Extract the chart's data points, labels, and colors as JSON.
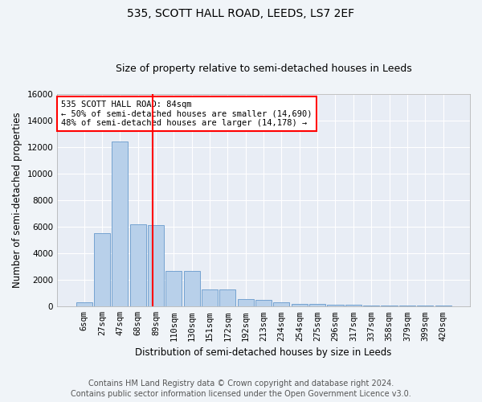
{
  "title1": "535, SCOTT HALL ROAD, LEEDS, LS7 2EF",
  "title2": "Size of property relative to semi-detached houses in Leeds",
  "xlabel": "Distribution of semi-detached houses by size in Leeds",
  "ylabel": "Number of semi-detached properties",
  "bar_labels": [
    "6sqm",
    "27sqm",
    "47sqm",
    "68sqm",
    "89sqm",
    "110sqm",
    "130sqm",
    "151sqm",
    "172sqm",
    "192sqm",
    "213sqm",
    "234sqm",
    "254sqm",
    "275sqm",
    "296sqm",
    "317sqm",
    "337sqm",
    "358sqm",
    "379sqm",
    "399sqm",
    "420sqm"
  ],
  "bar_values": [
    300,
    5500,
    12400,
    6200,
    6100,
    2700,
    2700,
    1300,
    1300,
    550,
    500,
    300,
    200,
    180,
    150,
    110,
    100,
    90,
    80,
    75,
    70
  ],
  "bar_color": "#b8d0ea",
  "bar_edgecolor": "#6699cc",
  "ylim": [
    0,
    16000
  ],
  "yticks": [
    0,
    2000,
    4000,
    6000,
    8000,
    10000,
    12000,
    14000,
    16000
  ],
  "vline_x_index": 3.82,
  "vline_color": "red",
  "annotation_title": "535 SCOTT HALL ROAD: 84sqm",
  "annotation_line1": "← 50% of semi-detached houses are smaller (14,690)",
  "annotation_line2": "48% of semi-detached houses are larger (14,178) →",
  "annotation_box_color": "red",
  "footer1": "Contains HM Land Registry data © Crown copyright and database right 2024.",
  "footer2": "Contains public sector information licensed under the Open Government Licence v3.0.",
  "bg_color": "#f0f4f8",
  "plot_bg_color": "#e8edf5",
  "grid_color": "#ffffff",
  "title1_fontsize": 10,
  "title2_fontsize": 9,
  "xlabel_fontsize": 8.5,
  "ylabel_fontsize": 8.5,
  "tick_fontsize": 7.5,
  "annotation_fontsize": 7.5,
  "footer_fontsize": 7
}
